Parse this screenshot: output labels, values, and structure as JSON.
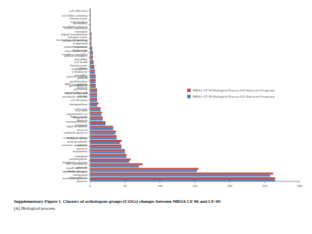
{
  "chart_data": {
    "type": "bar",
    "orientation": "horizontal",
    "grid": false,
    "legend": "right",
    "categories": [
      "cell adhesion",
      "cell differentiation",
      "chromosome organization",
      "secondary metabolic process",
      "vesicle-mediated transport",
      "signal transduction",
      "nitrogen cycle metabolic process",
      "nucleobase-containing compound catabolic process",
      "ribosome biogenesis",
      "macromolecular complex assembly",
      "protein complex assembly",
      "cell death",
      "chromosome segregation",
      "cellular component assembly",
      "protein folding",
      "protein modification process",
      "tRNA metabolic process",
      "generation of precursor metabolites and energy",
      "sulfur compound metabolic process",
      "cell division",
      "transposition",
      "cell cycle",
      "cell wall organization or biogenesis",
      "homeostatic process",
      "transmembrane transport",
      "lipid metabolic process",
      "catabolic process",
      "response to stress",
      "cellular amino acid metabolic process",
      "cofactor metabolic process",
      "translation",
      "transport",
      "carbohydrate metabolic process",
      "DNA metabolic process",
      "small molecule metabolic process",
      "cellular nitrogen compound metabolic process",
      "biosynthetic process"
    ],
    "series": [
      {
        "name": "MRSA CF-09 Biological Process GO Slim term Frequency",
        "color": "#c0504d",
        "values": [
          1,
          1,
          1,
          1,
          1,
          2,
          2,
          2,
          3,
          4,
          4,
          5,
          6,
          7,
          8,
          8,
          8,
          10,
          10,
          10,
          12,
          15,
          17,
          18,
          22,
          33,
          37,
          38,
          45,
          45,
          50,
          52,
          58,
          75,
          155,
          262,
          265
        ]
      },
      {
        "name": "MRSA CF-96 Biological Process GO Slim term Frequency",
        "color": "#4f81bd",
        "values": [
          1,
          1,
          1,
          1,
          1,
          2,
          2,
          2,
          3,
          4,
          4,
          5,
          6,
          7,
          8,
          8,
          8,
          10,
          10,
          10,
          10,
          15,
          16,
          18,
          22,
          33,
          36,
          38,
          43,
          45,
          50,
          52,
          56,
          70,
          153,
          258,
          265
        ]
      }
    ],
    "xlim": [
      0,
      300
    ],
    "xticks": [
      0,
      50,
      100,
      150,
      200,
      250,
      300
    ],
    "annotations": [
      "Supplementary Figure 1. Clusters of orthologous groups (COGs) changes between MRSA CF-96 and CF-09",
      "(A) Biological process."
    ]
  }
}
